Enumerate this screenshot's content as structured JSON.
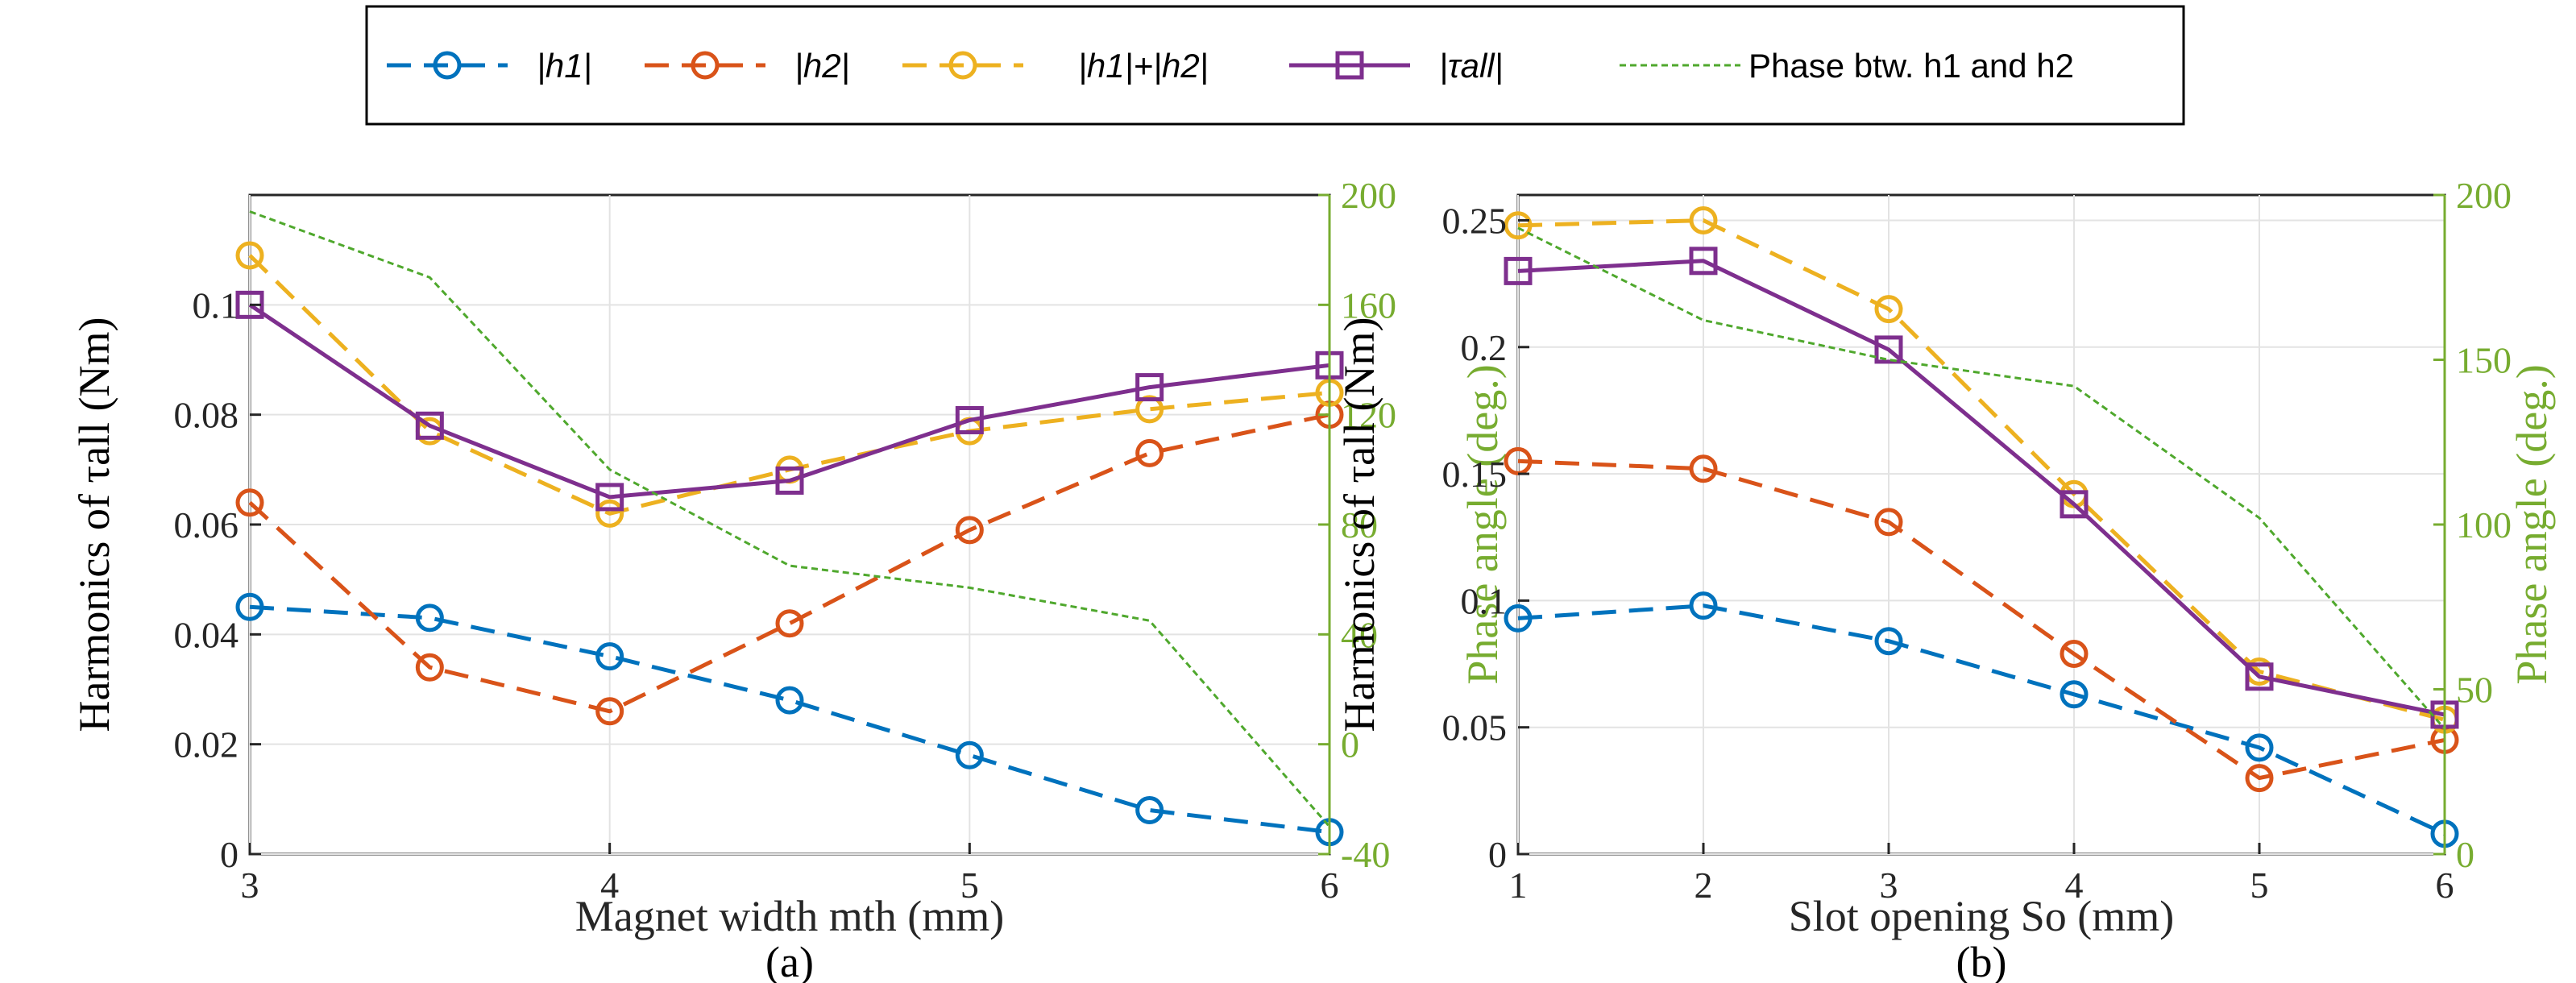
{
  "legend": {
    "entries": [
      {
        "key": "h1",
        "label": "|h1|",
        "color": "#0072BD",
        "marker": "circle",
        "dash": "dashed"
      },
      {
        "key": "h2",
        "label": "|h2|",
        "color": "#D95319",
        "marker": "circle",
        "dash": "dashed"
      },
      {
        "key": "sum",
        "label": "|h1|+|h2|",
        "color": "#EDB120",
        "marker": "circle",
        "dash": "dashed"
      },
      {
        "key": "tau",
        "label": "|τall|",
        "color": "#7E2F8E",
        "marker": "square",
        "dash": "solid"
      },
      {
        "key": "phase",
        "label": "Phase btw. h1 and h2",
        "color": "#4FA82D",
        "marker": "none",
        "dash": "dotted"
      }
    ]
  },
  "chart_data": [
    {
      "type": "line",
      "panel_label": "(a)",
      "xlabel": "Magnet width mth (mm)",
      "ylabel": "Harmonics of τall (Nm)",
      "ylabel_right": "Phase angle (deg.)",
      "x": [
        3,
        3.5,
        4,
        4.5,
        5,
        5.5,
        6
      ],
      "xlim": [
        3,
        6
      ],
      "xticks": [
        3,
        4,
        5,
        6
      ],
      "xtick_labels": [
        "3",
        "4",
        "5",
        "6"
      ],
      "ylim": [
        0,
        0.12
      ],
      "yticks": [
        0,
        0.02,
        0.04,
        0.06,
        0.08,
        0.1
      ],
      "ytick_labels": [
        "0",
        "0.02",
        "0.04",
        "0.06",
        "0.08",
        "0.1"
      ],
      "ylim_right": [
        -40,
        200
      ],
      "yticks_right": [
        -40,
        0,
        40,
        80,
        120,
        160,
        200
      ],
      "ytick_labels_right": [
        "-40",
        "0",
        "40",
        "80",
        "120",
        "160",
        "200"
      ],
      "grid": true,
      "series": [
        {
          "key": "h1",
          "name": "|h1|",
          "values": [
            0.045,
            0.043,
            0.036,
            0.028,
            0.018,
            0.008,
            0.004
          ]
        },
        {
          "key": "h2",
          "name": "|h2|",
          "values": [
            0.064,
            0.034,
            0.026,
            0.042,
            0.059,
            0.073,
            0.08
          ]
        },
        {
          "key": "sum",
          "name": "|h1|+|h2|",
          "values": [
            0.109,
            0.077,
            0.062,
            0.07,
            0.077,
            0.081,
            0.084
          ]
        },
        {
          "key": "tau",
          "name": "|τall|",
          "values": [
            0.1,
            0.078,
            0.065,
            0.068,
            0.079,
            0.085,
            0.089
          ]
        },
        {
          "key": "phase",
          "name": "Phase btw. h1 and h2",
          "axis": "right",
          "values": [
            194,
            170,
            100,
            65,
            57,
            45,
            -30
          ]
        }
      ]
    },
    {
      "type": "line",
      "panel_label": "(b)",
      "xlabel": "Slot opening So (mm)",
      "ylabel": "Harmonics of τall (Nm)",
      "ylabel_right": "Phase angle (deg.)",
      "x": [
        1,
        2,
        3,
        4,
        5,
        6
      ],
      "xlim": [
        1,
        6
      ],
      "xticks": [
        1,
        2,
        3,
        4,
        5,
        6
      ],
      "xtick_labels": [
        "1",
        "2",
        "3",
        "4",
        "5",
        "6"
      ],
      "ylim": [
        0,
        0.26
      ],
      "yticks": [
        0,
        0.05,
        0.1,
        0.15,
        0.2,
        0.25
      ],
      "ytick_labels": [
        "0",
        "0.05",
        "0.1",
        "0.15",
        "0.2",
        "0.25"
      ],
      "ylim_right": [
        0,
        200
      ],
      "yticks_right": [
        0,
        50,
        100,
        150,
        200
      ],
      "ytick_labels_right": [
        "0",
        "50",
        "100",
        "150",
        "200"
      ],
      "grid": true,
      "series": [
        {
          "key": "h1",
          "name": "|h1|",
          "values": [
            0.093,
            0.098,
            0.084,
            0.063,
            0.042,
            0.008
          ]
        },
        {
          "key": "h2",
          "name": "|h2|",
          "values": [
            0.155,
            0.152,
            0.131,
            0.079,
            0.03,
            0.045
          ]
        },
        {
          "key": "sum",
          "name": "|h1|+|h2|",
          "values": [
            0.248,
            0.25,
            0.215,
            0.142,
            0.072,
            0.053
          ]
        },
        {
          "key": "tau",
          "name": "|τall|",
          "values": [
            0.23,
            0.234,
            0.199,
            0.138,
            0.07,
            0.055
          ]
        },
        {
          "key": "phase",
          "name": "Phase btw. h1 and h2",
          "axis": "right",
          "values": [
            190,
            162,
            150,
            142,
            102,
            38
          ]
        }
      ]
    }
  ]
}
